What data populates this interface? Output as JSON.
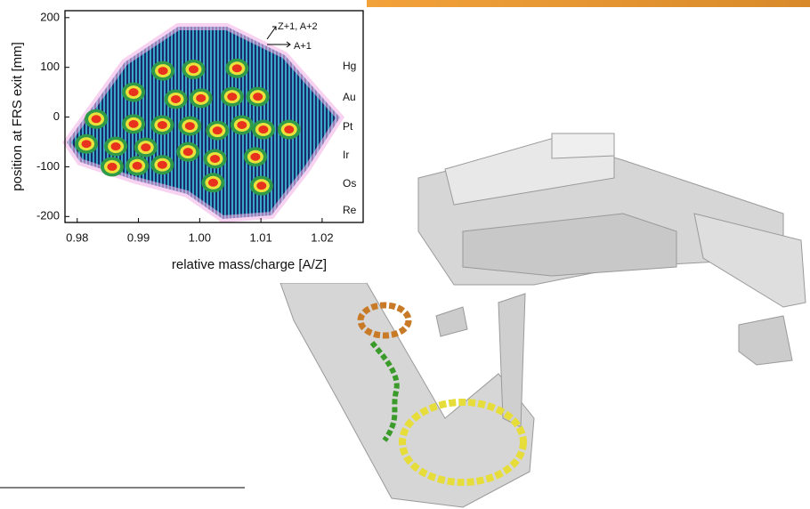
{
  "chart_data": {
    "type": "scatter",
    "x_label": "relative mass/charge [A/Z]",
    "y_label": "position at FRS exit [mm]",
    "annotations": [
      "Z+1, A+2",
      "A+1"
    ],
    "element_labels": [
      "Hg",
      "Au",
      "Pt",
      "Ir",
      "Os",
      "Re"
    ],
    "x": [
      0.9815,
      0.9831,
      0.9863,
      0.9892,
      0.9892,
      0.9857,
      0.9912,
      0.9939,
      0.994,
      0.9961,
      0.9984,
      1.0002,
      0.999,
      1.0029,
      1.0053,
      1.0061,
      1.0069,
      1.0025,
      0.9981,
      1.0095,
      1.0104,
      1.0091,
      1.0146,
      1.0022,
      0.9939,
      0.9898,
      1.0101
    ],
    "y": [
      -54,
      -4,
      -59,
      -14,
      50,
      -100,
      -61,
      -16,
      93,
      36,
      -18,
      38,
      96,
      -27,
      41,
      98,
      -16,
      -84,
      -70,
      41,
      -25,
      -80,
      -25,
      -132,
      -96,
      -98,
      -138
    ],
    "color": "#e8321e",
    "xlim": [
      0.978,
      1.0267
    ],
    "ylim": [
      -212,
      214
    ],
    "xticks": [
      0.98,
      0.99,
      {
        "value": 1,
        "label": "1.00"
      },
      1.01,
      1.02
    ],
    "yticks": [
      -200,
      -100,
      0,
      100,
      200
    ]
  }
}
